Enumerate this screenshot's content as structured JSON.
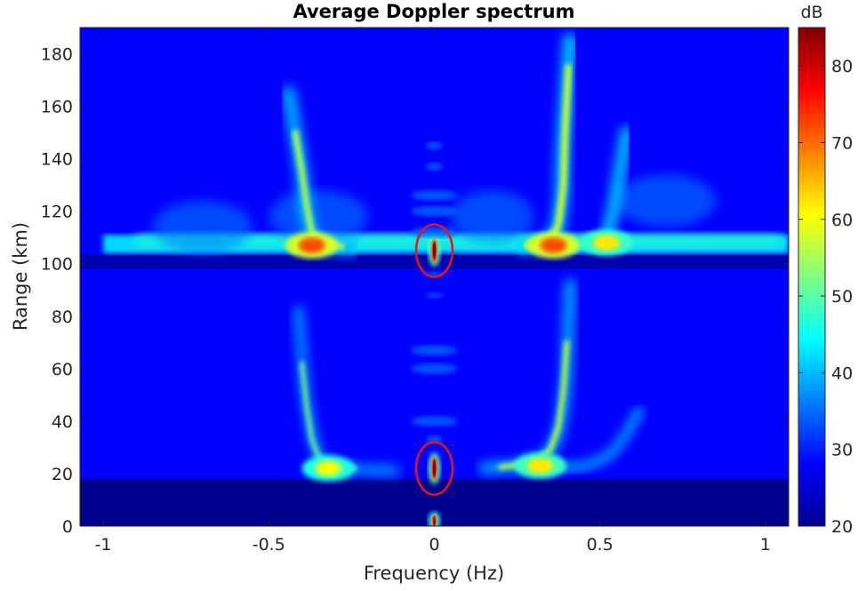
{
  "chart_data": {
    "type": "heatmap",
    "title": "Average Doppler spectrum",
    "xlabel": "Frequency (Hz)",
    "ylabel": "Range (km)",
    "xlim": [
      -1.07,
      1.07
    ],
    "ylim": [
      0,
      190
    ],
    "x_ticks": [
      -1,
      -0.5,
      0,
      0.5,
      1
    ],
    "x_tick_labels": [
      "-1",
      "-0.5",
      "0",
      "0.5",
      "1"
    ],
    "y_ticks": [
      0,
      20,
      40,
      60,
      80,
      100,
      120,
      140,
      160,
      180
    ],
    "y_tick_labels": [
      "0",
      "20",
      "40",
      "60",
      "80",
      "100",
      "120",
      "140",
      "160",
      "180"
    ],
    "colorbar": {
      "label": "dB",
      "range": [
        20,
        85
      ],
      "ticks": [
        20,
        30,
        40,
        50,
        60,
        70,
        80
      ],
      "tick_labels": [
        "20",
        "30",
        "40",
        "50",
        "60",
        "70",
        "80"
      ],
      "colormap": "jet"
    },
    "levels_db": {
      "near_floor": 21,
      "floor": 28,
      "band": 42
    },
    "features": [
      {
        "name": "upper-horizontal-band",
        "range_km": [
          104,
          111
        ],
        "freq_hz": [
          -1.0,
          1.07
        ],
        "db": 42
      },
      {
        "name": "upper-left-peak",
        "x": -0.37,
        "y": 107,
        "db": 72
      },
      {
        "name": "upper-right-peak",
        "x": 0.36,
        "y": 107,
        "db": 72
      },
      {
        "name": "upper-right-outer-peak",
        "x": 0.52,
        "y": 108,
        "db": 62
      },
      {
        "name": "lower-left-branch-peak",
        "x": -0.32,
        "y": 22,
        "db": 60
      },
      {
        "name": "lower-right-branch-peak",
        "x": 0.32,
        "y": 23,
        "db": 62
      },
      {
        "name": "zero-doppler-clutter-upper",
        "x": 0,
        "y": 105,
        "db": 85
      },
      {
        "name": "zero-doppler-clutter-lower",
        "x": 0,
        "y": 22,
        "db": 85
      },
      {
        "name": "zero-doppler-clutter-bottom",
        "x": 0,
        "y": 2,
        "db": 80
      }
    ],
    "annotations": [
      {
        "shape": "ellipse",
        "color": "#e8141c",
        "center": [
          0,
          105
        ],
        "radius_hz": 0.055,
        "radius_km": 10
      },
      {
        "shape": "ellipse",
        "color": "#e8141c",
        "center": [
          0,
          22
        ],
        "radius_hz": 0.055,
        "radius_km": 10
      }
    ]
  }
}
